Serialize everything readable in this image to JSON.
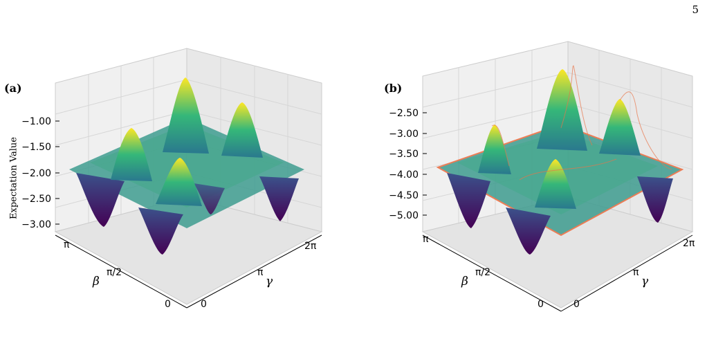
{
  "page_number": "5",
  "figure": {
    "panels": [
      {
        "label": "(a)",
        "zlabel": "Expectation Value",
        "ztick_labels": [
          "−1.00",
          "−1.50",
          "−2.00",
          "−2.50",
          "−3.00"
        ],
        "beta_tick_labels": [
          "π",
          "π/2",
          "0"
        ],
        "gamma_tick_labels": [
          "0",
          "π",
          "2π"
        ],
        "beta_label": "β",
        "gamma_label": "γ"
      },
      {
        "label": "(b)",
        "zlabel": "",
        "ztick_labels": [
          "−2.50",
          "−3.00",
          "−3.50",
          "−4.00",
          "−4.50",
          "−5.00"
        ],
        "beta_tick_labels": [
          "π",
          "π/2",
          "0"
        ],
        "gamma_tick_labels": [
          "0",
          "π",
          "2π"
        ],
        "beta_label": "β",
        "gamma_label": "γ"
      }
    ]
  },
  "chart_data": [
    {
      "type": "surface",
      "x_axis": "gamma",
      "x_range": [
        0,
        6.283
      ],
      "y_axis": "beta",
      "y_range": [
        0,
        3.1416
      ],
      "z_range": [
        -3.2,
        -0.8
      ],
      "surface": "expectation value; four main peaks near -0.9, four deep minima near -3.1, flat plateau near -2.0",
      "colormap": "viridis",
      "overlay": "none"
    },
    {
      "type": "surface",
      "x_axis": "gamma",
      "x_range": [
        0,
        6.283
      ],
      "y_axis": "beta",
      "y_range": [
        0,
        3.1416
      ],
      "z_range": [
        -5.2,
        -2.3
      ],
      "surface": "expectation value; four main peaks near -2.4, four deep minima near -5.1, plateau near -4.0",
      "colormap": "viridis",
      "overlay": "thin orange/red traced curves over surface"
    }
  ]
}
